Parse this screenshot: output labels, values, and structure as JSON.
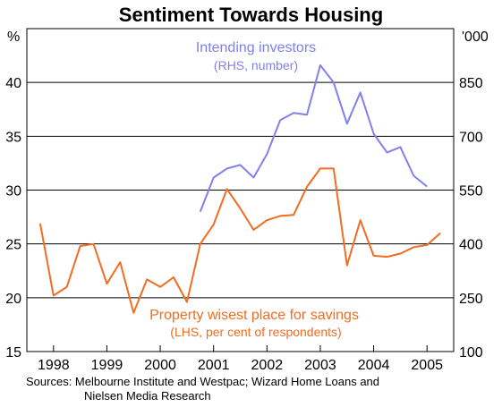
{
  "chart_data": {
    "type": "line",
    "title": "Sentiment Towards Housing",
    "left_unit": "%",
    "right_unit": "'000",
    "x_ticks": [
      "1998",
      "1999",
      "2000",
      "2001",
      "2002",
      "2003",
      "2004",
      "2005"
    ],
    "left_axis": {
      "ylim": [
        15,
        45
      ],
      "ticks": [
        "15",
        "20",
        "25",
        "30",
        "35",
        "40"
      ]
    },
    "right_axis": {
      "ylim": [
        100,
        1000
      ],
      "ticks": [
        "100",
        "250",
        "400",
        "550",
        "700",
        "850",
        "'000"
      ]
    },
    "grid": true,
    "series": [
      {
        "name": "Intending investors",
        "sublabel": "(RHS, number)",
        "axis": "right",
        "color": "#8080ee",
        "x": [
          2000.75,
          2001.0,
          2001.25,
          2001.5,
          2001.75,
          2002.0,
          2002.25,
          2002.5,
          2002.75,
          2003.0,
          2003.25,
          2003.5,
          2003.75,
          2004.0,
          2004.25,
          2004.5,
          2004.75,
          2005.0
        ],
        "values": [
          490,
          585,
          610,
          620,
          585,
          650,
          745,
          765,
          760,
          898,
          850,
          735,
          822,
          707,
          655,
          670,
          590,
          560
        ]
      },
      {
        "name": "Property wisest place for savings",
        "sublabel": "(LHS, per cent of respondents)",
        "axis": "left",
        "color": "#f26c21",
        "x": [
          1997.75,
          1998.0,
          1998.25,
          1998.5,
          1998.75,
          1999.0,
          1999.25,
          1999.5,
          1999.75,
          2000.0,
          2000.25,
          2000.5,
          2000.75,
          2001.0,
          2001.25,
          2001.5,
          2001.75,
          2002.0,
          2002.25,
          2002.5,
          2002.75,
          2003.0,
          2003.25,
          2003.5,
          2003.75,
          2004.0,
          2004.25,
          2004.5,
          2004.75,
          2005.0,
          2005.25
        ],
        "values": [
          26.9,
          20.2,
          21.0,
          24.8,
          25.0,
          21.3,
          23.3,
          18.6,
          21.7,
          21.0,
          21.9,
          19.6,
          25.0,
          26.8,
          30.1,
          28.3,
          26.3,
          27.2,
          27.6,
          27.7,
          30.3,
          32.0,
          32.0,
          23.0,
          27.2,
          23.9,
          23.8,
          24.1,
          24.7,
          24.9,
          26.0
        ]
      }
    ]
  },
  "source": {
    "line1": "Sources: Melbourne Institute and Westpac; Wizard Home Loans and",
    "line2": "Nielsen Media Research"
  }
}
